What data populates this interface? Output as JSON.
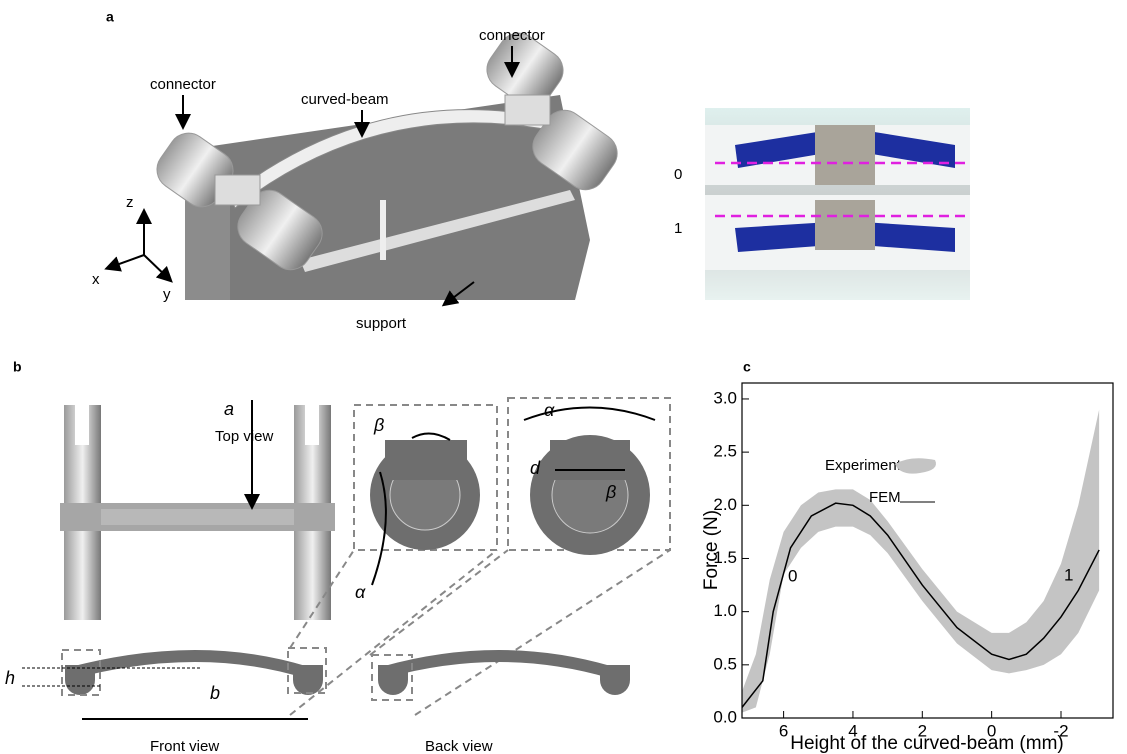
{
  "panel_a": {
    "label": "a",
    "callouts": [
      "connector",
      "connector",
      "curved-beam",
      "support"
    ],
    "axes": [
      "z",
      "x",
      "y"
    ],
    "photo_states": [
      "0",
      "1"
    ]
  },
  "panel_b": {
    "label": "b",
    "top_view": "Top view",
    "symbols": [
      "a",
      "β",
      "α",
      "α",
      "d",
      "β",
      "h",
      "b"
    ],
    "front_view": "Front view",
    "back_view": "Back view"
  },
  "panel_c": {
    "label": "c"
  },
  "chart_data": {
    "type": "line",
    "xlabel": "Height of the curved-beam (mm)",
    "ylabel": "Force (N)",
    "xlim": [
      7.2,
      -3.5
    ],
    "ylim": [
      0,
      3.15
    ],
    "xticks": [
      6,
      4,
      2,
      0,
      -2
    ],
    "yticks": [
      {
        "value": 0,
        "label": "0.0"
      },
      {
        "value": 0.5,
        "label": "0.5"
      },
      {
        "value": 1,
        "label": "1.0"
      },
      {
        "value": 1.5,
        "label": "1.5"
      },
      {
        "value": 2,
        "label": "2.0"
      },
      {
        "value": 2.5,
        "label": "2.5"
      },
      {
        "value": 3,
        "label": "3.0"
      }
    ],
    "band": {
      "name": "Experiment",
      "color": "#c4c4c4",
      "x": [
        7.2,
        6.8,
        6.4,
        6,
        5.5,
        5,
        4.5,
        4,
        3.5,
        3,
        2,
        1,
        0,
        -0.5,
        -1,
        -1.5,
        -2,
        -2.5,
        -3.1
      ],
      "upper": [
        0.25,
        0.6,
        1.3,
        1.75,
        2.0,
        2.12,
        2.15,
        2.15,
        2.05,
        1.85,
        1.4,
        1.0,
        0.8,
        0.8,
        0.9,
        1.1,
        1.45,
        2.0,
        2.9
      ],
      "lower": [
        0.05,
        0.1,
        0.6,
        1.35,
        1.6,
        1.75,
        1.8,
        1.8,
        1.72,
        1.55,
        1.1,
        0.7,
        0.45,
        0.42,
        0.45,
        0.5,
        0.6,
        0.8,
        1.2
      ]
    },
    "series": [
      {
        "name": "FEM",
        "color": "#000000",
        "x": [
          7.2,
          6.6,
          6.3,
          5.8,
          5.2,
          4.5,
          4,
          3.5,
          3,
          2,
          1,
          0,
          -0.5,
          -1,
          -1.5,
          -2,
          -2.5,
          -3.1
        ],
        "values": [
          0.1,
          0.35,
          1.0,
          1.6,
          1.9,
          2.02,
          2.0,
          1.9,
          1.72,
          1.25,
          0.85,
          0.6,
          0.55,
          0.6,
          0.75,
          0.95,
          1.2,
          1.58
        ]
      }
    ],
    "annotations": [
      "0",
      "1"
    ]
  }
}
